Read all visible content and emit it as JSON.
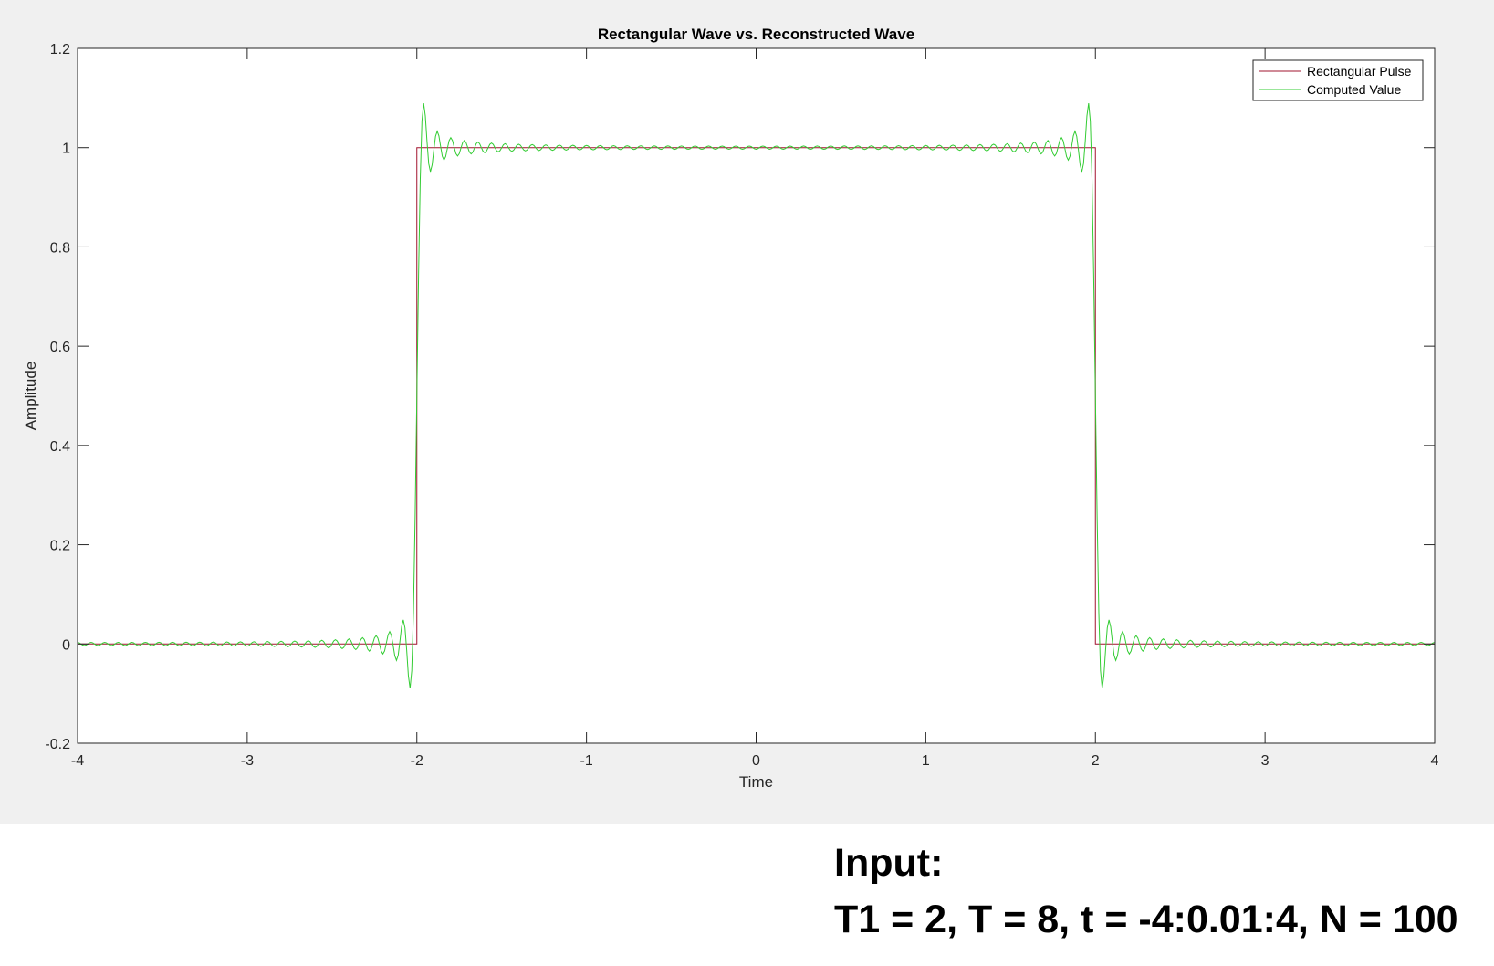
{
  "chart_data": {
    "type": "line",
    "title": "Rectangular Wave vs. Reconstructed Wave",
    "xlabel": "Time",
    "ylabel": "Amplitude",
    "xlim": [
      -4,
      4
    ],
    "ylim": [
      -0.2,
      1.2
    ],
    "xticks": [
      -4,
      -3,
      -2,
      -1,
      0,
      1,
      2,
      3,
      4
    ],
    "yticks": [
      -0.2,
      0,
      0.2,
      0.4,
      0.6,
      0.8,
      1,
      1.2
    ],
    "grid": false,
    "legend_position": "top-right",
    "series": [
      {
        "name": "Rectangular Pulse",
        "color": "#a2142f",
        "x": [
          -4,
          -2,
          -2,
          2,
          2,
          4
        ],
        "y": [
          0,
          0,
          1,
          1,
          0,
          0
        ]
      },
      {
        "name": "Computed Value",
        "color": "#33cc33",
        "generator": {
          "form": "fourier_series_rectangular_pulse",
          "T1": 2,
          "T": 8,
          "t_start": -4,
          "t_step": 0.01,
          "t_end": 4,
          "N": 100
        }
      }
    ]
  },
  "caption": {
    "title": "Input:",
    "params": "T1 = 2, T = 8, t = -4:0.01:4, N = 100"
  }
}
